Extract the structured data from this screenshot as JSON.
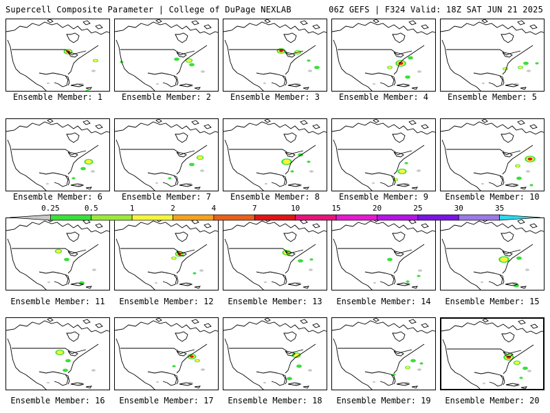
{
  "header": {
    "left_title": "Supercell Composite Parameter | College of DuPage NEXLAB",
    "right_title": "06Z GEFS | F324 Valid: 18Z SAT JUN 21 2025"
  },
  "caption_prefix": "Ensemble Member: ",
  "members": [
    1,
    2,
    3,
    4,
    5,
    6,
    7,
    8,
    9,
    10,
    11,
    12,
    13,
    14,
    15,
    16,
    17,
    18,
    19,
    20
  ],
  "highlighted_member": 20,
  "colorbar": {
    "labels": [
      "0.25",
      "0.5",
      "1",
      "2",
      "4",
      "7",
      "10",
      "15",
      "20",
      "25",
      "30",
      "35"
    ],
    "colors": [
      "#c8c8c8",
      "#3adf3a",
      "#9be83b",
      "#f5f53a",
      "#f5a21e",
      "#e8601a",
      "#e01414",
      "#e6147a",
      "#e619d0",
      "#b514e6",
      "#7a14e6",
      "#9a7ae6",
      "#33d6e6"
    ]
  }
}
